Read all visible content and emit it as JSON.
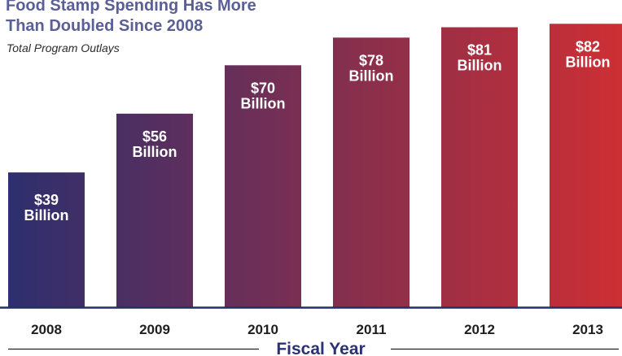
{
  "title_line1": "Food Stamp Spending Has More",
  "title_line2": "Than Doubled Since 2008",
  "subtitle": "Total Program Outlays",
  "colors": {
    "title": "#5a5f96",
    "bar_start": "#2d2f6e",
    "bar_end": "#cc2f34",
    "axis": "#24305e",
    "label_text": "#ffffff",
    "tick_text": "#1f1f1f",
    "xlabel_text": "#2a3275"
  },
  "chart_data": {
    "type": "bar",
    "title": "Food Stamp Spending Has More Than Doubled Since 2008",
    "subtitle": "Total Program Outlays",
    "xlabel": "Fiscal Year",
    "ylabel": "",
    "categories": [
      "2008",
      "2009",
      "2010",
      "2011",
      "2012",
      "2013"
    ],
    "values": [
      39,
      56,
      70,
      78,
      81,
      82
    ],
    "data_labels": [
      [
        "$39",
        "Billion"
      ],
      [
        "$56",
        "Billion"
      ],
      [
        "$70",
        "Billion"
      ],
      [
        "$78",
        "Billion"
      ],
      [
        "$81",
        "Billion"
      ],
      [
        "$82",
        "Billion"
      ]
    ],
    "unit": "Billion",
    "ylim": [
      0,
      87
    ],
    "grid": false,
    "legend": "none"
  }
}
